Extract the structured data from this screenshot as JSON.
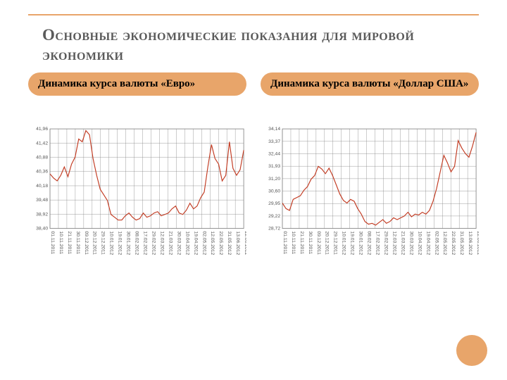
{
  "title": "Основные экономические показания для мировой экономики",
  "subtitle_left": "Динамика курса валюты «Евро»",
  "subtitle_right": "Динамика курса валюты «Доллар США»",
  "accent_color": "#e8a56a",
  "line_color": "#c23b22",
  "grid_color": "#808080",
  "text_color": "#5a5a5a",
  "chart_left": {
    "type": "line",
    "ylim": [
      38.4,
      41.96
    ],
    "yticks": [
      "38,40",
      "38,92",
      "39,48",
      "40,18",
      "40,36",
      "40,88",
      "41,42",
      "41,96"
    ],
    "xticks": [
      "01.11.2011",
      "10.11.2011",
      "21.11.2011",
      "30.11.2011",
      "09.12.2011",
      "20.12.2011",
      "29.12.2011",
      "10.01.2012",
      "19.01.2012",
      "30.01.2012",
      "08.02.2012",
      "17.02.2012",
      "29.02.2012",
      "12.03.2012",
      "21.03.2012",
      "30.03.2012",
      "10.04.2012",
      "19.04.2012",
      "02.05.2012",
      "12.05.2012",
      "22.05.2012",
      "31.05.2012",
      "13.06.2012",
      "22.06.2012"
    ],
    "values": [
      40.35,
      40.2,
      40.1,
      40.3,
      40.6,
      40.25,
      40.7,
      40.95,
      41.6,
      41.5,
      41.9,
      41.75,
      40.9,
      40.3,
      39.8,
      39.6,
      39.4,
      38.9,
      38.8,
      38.7,
      38.7,
      38.85,
      38.95,
      38.8,
      38.7,
      38.75,
      38.95,
      38.8,
      38.85,
      38.95,
      39.0,
      38.85,
      38.9,
      38.95,
      39.1,
      39.2,
      38.95,
      38.9,
      39.05,
      39.3,
      39.1,
      39.2,
      39.5,
      39.7,
      40.6,
      41.4,
      40.9,
      40.7,
      40.1,
      40.3,
      41.5,
      40.55,
      40.3,
      40.5,
      41.2
    ]
  },
  "chart_right": {
    "type": "line",
    "ylim": [
      28.72,
      34.14
    ],
    "yticks": [
      "28,72",
      "29,22",
      "29,95",
      "30,60",
      "31,20",
      "31,93",
      "32,44",
      "33,37",
      "34,14"
    ],
    "xticks": [
      "01.11.2011",
      "10.11.2011",
      "21.11.2011",
      "30.11.2011",
      "09.12.2011",
      "20.12.2011",
      "29.12.2011",
      "10.01.2012",
      "19.01.2012",
      "30.01.2012",
      "08.02.2012",
      "17.02.2012",
      "29.02.2012",
      "12.03.2012",
      "21.03.2012",
      "30.03.2012",
      "10.04.2012",
      "19.04.2012",
      "02.05.2012",
      "12.05.2012",
      "22.05.2012",
      "31.05.2012",
      "13.06.2012",
      "22.06.2012"
    ],
    "values": [
      30.1,
      29.8,
      29.7,
      30.3,
      30.4,
      30.5,
      30.8,
      31.0,
      31.4,
      31.6,
      32.1,
      31.95,
      31.7,
      32.0,
      31.6,
      31.1,
      30.6,
      30.25,
      30.1,
      30.3,
      30.2,
      29.8,
      29.5,
      29.1,
      28.95,
      29.0,
      28.9,
      29.05,
      29.2,
      29.0,
      29.1,
      29.3,
      29.2,
      29.3,
      29.4,
      29.6,
      29.35,
      29.5,
      29.45,
      29.6,
      29.5,
      29.7,
      30.2,
      30.9,
      31.8,
      32.7,
      32.3,
      31.8,
      32.1,
      33.5,
      33.1,
      32.8,
      32.6,
      33.2,
      33.95
    ]
  }
}
